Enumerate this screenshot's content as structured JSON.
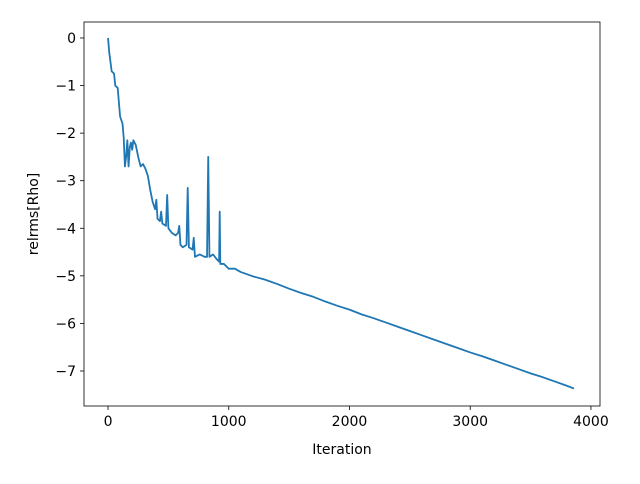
{
  "chart_data": {
    "type": "line",
    "xlabel": "Iteration",
    "ylabel": "relrms[Rho]",
    "color": "#1f77b4",
    "grid": false,
    "x": [
      0,
      10,
      20,
      30,
      50,
      60,
      80,
      100,
      120,
      130,
      140,
      150,
      160,
      170,
      180,
      190,
      200,
      210,
      230,
      250,
      270,
      290,
      310,
      330,
      350,
      370,
      390,
      400,
      410,
      430,
      440,
      450,
      480,
      490,
      500,
      530,
      560,
      580,
      590,
      600,
      620,
      650,
      660,
      670,
      700,
      710,
      720,
      760,
      800,
      820,
      830,
      840,
      870,
      900,
      920,
      925,
      930,
      960,
      1000,
      1050,
      1100,
      1200,
      1300,
      1400,
      1500,
      1600,
      1700,
      1800,
      1900,
      2000,
      2100,
      2200,
      2300,
      2400,
      2500,
      2600,
      2700,
      2800,
      2900,
      3000,
      3100,
      3200,
      3300,
      3400,
      3500,
      3600,
      3700,
      3800,
      3860
    ],
    "values": [
      0,
      -0.3,
      -0.5,
      -0.7,
      -0.75,
      -1.0,
      -1.05,
      -1.65,
      -1.8,
      -2.1,
      -2.7,
      -2.5,
      -2.15,
      -2.7,
      -2.3,
      -2.2,
      -2.35,
      -2.15,
      -2.25,
      -2.5,
      -2.7,
      -2.65,
      -2.75,
      -2.9,
      -3.2,
      -3.45,
      -3.6,
      -3.4,
      -3.8,
      -3.85,
      -3.65,
      -3.9,
      -3.95,
      -3.3,
      -4.0,
      -4.1,
      -4.15,
      -4.1,
      -3.95,
      -4.35,
      -4.4,
      -4.35,
      -3.15,
      -4.4,
      -4.45,
      -4.2,
      -4.6,
      -4.55,
      -4.6,
      -4.6,
      -2.5,
      -4.6,
      -4.55,
      -4.65,
      -4.7,
      -3.65,
      -4.75,
      -4.75,
      -4.85,
      -4.85,
      -4.92,
      -5.01,
      -5.08,
      -5.17,
      -5.27,
      -5.36,
      -5.44,
      -5.54,
      -5.63,
      -5.71,
      -5.81,
      -5.89,
      -5.98,
      -6.07,
      -6.16,
      -6.25,
      -6.34,
      -6.43,
      -6.52,
      -6.61,
      -6.69,
      -6.78,
      -6.87,
      -6.96,
      -7.05,
      -7.13,
      -7.22,
      -7.31,
      -7.37
    ],
    "xlim": [
      -199,
      4075
    ],
    "xticks": [
      0,
      1000,
      2000,
      3000,
      4000
    ],
    "ylim": [
      -7.736,
      0.336
    ],
    "yticks": [
      0,
      {
        "value": -1,
        "label": "−1"
      },
      {
        "value": -2,
        "label": "−2"
      },
      {
        "value": -3,
        "label": "−3"
      },
      {
        "value": -4,
        "label": "−4"
      },
      {
        "value": -5,
        "label": "−5"
      },
      {
        "value": -6,
        "label": "−6"
      },
      {
        "value": -7,
        "label": "−7"
      }
    ]
  }
}
